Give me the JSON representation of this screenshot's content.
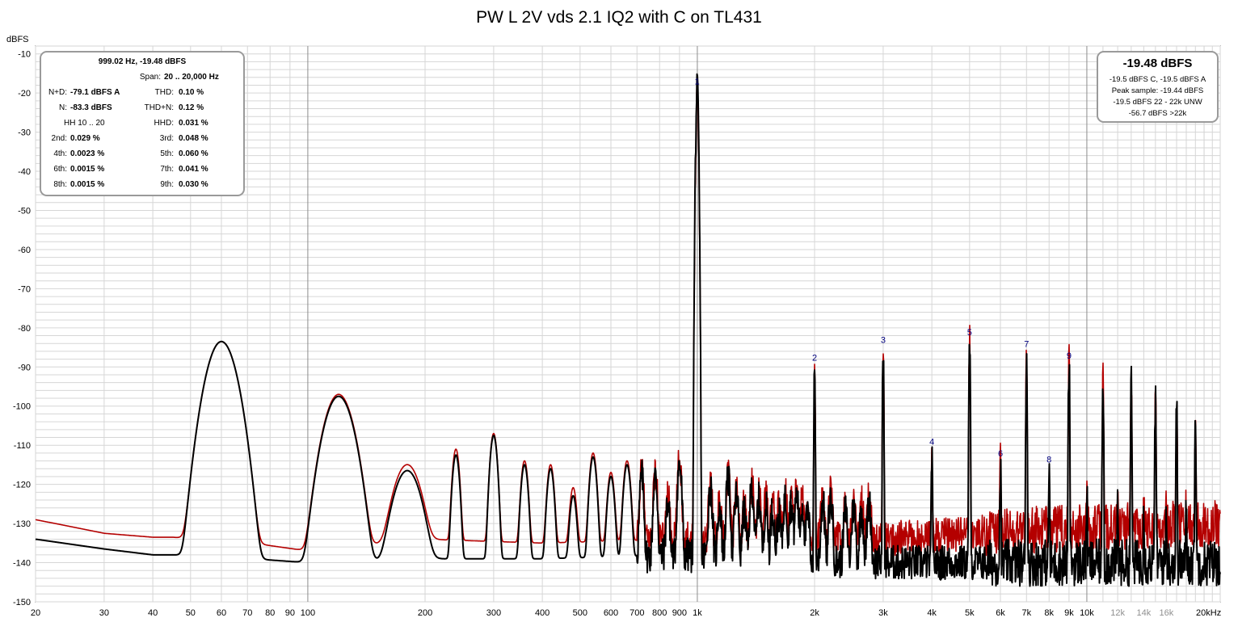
{
  "title": "PW L 2V vds 2.1 IQ2 with C on TL431",
  "colors": {
    "trace_front": "#000000",
    "trace_back": "#b40000",
    "harmonic_label": "#00007f",
    "grid_minor": "#d6d6d6",
    "grid_major": "#8c8c8c",
    "box_border": "#9a9a9a"
  },
  "chart_data": {
    "type": "line",
    "title": "PW L 2V vds 2.1 IQ2 with C on TL431",
    "ylabel": "dBFS",
    "xlabel": "",
    "x_scale": "log",
    "xlim": [
      20,
      22000
    ],
    "ylim": [
      -150,
      -8
    ],
    "grid": true,
    "legend": "none",
    "yticks": [
      -10,
      -20,
      -30,
      -40,
      -50,
      -60,
      -70,
      -80,
      -90,
      -100,
      -110,
      -120,
      -130,
      -140,
      -150
    ],
    "xticks": [
      {
        "f": 20,
        "label": "20"
      },
      {
        "f": 30,
        "label": "30"
      },
      {
        "f": 40,
        "label": "40"
      },
      {
        "f": 50,
        "label": "50"
      },
      {
        "f": 60,
        "label": "60"
      },
      {
        "f": 70,
        "label": "70"
      },
      {
        "f": 80,
        "label": "80"
      },
      {
        "f": 90,
        "label": "90"
      },
      {
        "f": 100,
        "label": "100"
      },
      {
        "f": 200,
        "label": "200"
      },
      {
        "f": 300,
        "label": "300"
      },
      {
        "f": 400,
        "label": "400"
      },
      {
        "f": 500,
        "label": "500"
      },
      {
        "f": 600,
        "label": "600"
      },
      {
        "f": 700,
        "label": "700"
      },
      {
        "f": 800,
        "label": "800"
      },
      {
        "f": 900,
        "label": "900"
      },
      {
        "f": 1000,
        "label": "1k"
      },
      {
        "f": 2000,
        "label": "2k"
      },
      {
        "f": 3000,
        "label": "3k"
      },
      {
        "f": 4000,
        "label": "4k"
      },
      {
        "f": 5000,
        "label": "5k"
      },
      {
        "f": 6000,
        "label": "6k"
      },
      {
        "f": 7000,
        "label": "7k"
      },
      {
        "f": 8000,
        "label": "8k"
      },
      {
        "f": 9000,
        "label": "9k"
      },
      {
        "f": 10000,
        "label": "10k"
      },
      {
        "f": 12000,
        "label": "12k"
      },
      {
        "f": 14000,
        "label": "14k"
      },
      {
        "f": 16000,
        "label": "16k"
      },
      {
        "f": 20000,
        "label": "20kHz"
      }
    ],
    "series": [
      {
        "color": "#000000",
        "baseline": [
          [
            20,
            -134
          ],
          [
            30,
            -136.5
          ],
          [
            40,
            -138
          ],
          [
            45,
            -138
          ],
          [
            72,
            -139
          ],
          [
            100,
            -140
          ],
          [
            200,
            -139
          ],
          [
            400,
            -139
          ],
          [
            900,
            -138
          ],
          [
            1500,
            -139
          ],
          [
            3000,
            -140
          ],
          [
            6000,
            -140
          ],
          [
            10000,
            -140
          ],
          [
            20000,
            -140
          ]
        ],
        "bumps": [
          [
            60,
            -83.5
          ],
          [
            120,
            -97.5
          ],
          [
            180,
            -116.5
          ],
          [
            240,
            -112.5
          ],
          [
            300,
            -107.5
          ],
          [
            360,
            -115
          ],
          [
            420,
            -116
          ],
          [
            480,
            -123
          ],
          [
            540,
            -113
          ],
          [
            600,
            -118
          ],
          [
            660,
            -115
          ],
          [
            720,
            -118
          ],
          [
            780,
            -118
          ],
          [
            840,
            -125
          ],
          [
            900,
            -115
          ],
          [
            1080,
            -121
          ],
          [
            1140,
            -126
          ],
          [
            1200,
            -119
          ],
          [
            1260,
            -123
          ],
          [
            1320,
            -127
          ],
          [
            1380,
            -121
          ],
          [
            1440,
            -124
          ],
          [
            1500,
            -126
          ],
          [
            1560,
            -127
          ],
          [
            1620,
            -128
          ],
          [
            1680,
            -124
          ],
          [
            1740,
            -125
          ],
          [
            1800,
            -123
          ],
          [
            1860,
            -126
          ],
          [
            1920,
            -128
          ],
          [
            2100,
            -125
          ],
          [
            2200,
            -124
          ],
          [
            2400,
            -127
          ],
          [
            2520,
            -126
          ],
          [
            2640,
            -127
          ],
          [
            2760,
            -125
          ]
        ],
        "peaks": [
          [
            999.02,
            -19.48
          ],
          [
            2000,
            -90
          ],
          [
            3000,
            -85.5
          ],
          [
            4000,
            -111.5
          ],
          [
            5000,
            -83.5
          ],
          [
            6000,
            -114.5
          ],
          [
            7000,
            -86.5
          ],
          [
            8000,
            -116
          ],
          [
            9000,
            -89.5
          ],
          [
            10000,
            -122
          ],
          [
            11000,
            -92.5
          ],
          [
            12000,
            -125
          ],
          [
            13000,
            -95
          ],
          [
            14000,
            -124
          ],
          [
            15000,
            -97.5
          ],
          [
            16000,
            -126
          ],
          [
            17000,
            -100.5
          ],
          [
            18000,
            -126
          ],
          [
            19000,
            -103
          ]
        ]
      },
      {
        "color": "#b40000",
        "baseline": [
          [
            20,
            -129
          ],
          [
            30,
            -132.5
          ],
          [
            40,
            -133.5
          ],
          [
            45,
            -133.5
          ],
          [
            72,
            -135
          ],
          [
            100,
            -137
          ],
          [
            200,
            -134
          ],
          [
            400,
            -135
          ],
          [
            900,
            -134
          ],
          [
            1500,
            -134
          ],
          [
            3000,
            -134
          ],
          [
            6000,
            -132
          ],
          [
            10000,
            -131
          ],
          [
            20000,
            -130
          ]
        ],
        "bumps": [
          [
            60,
            -83.5
          ],
          [
            120,
            -97
          ],
          [
            180,
            -115
          ],
          [
            240,
            -111
          ],
          [
            300,
            -107
          ],
          [
            360,
            -114
          ],
          [
            420,
            -115
          ],
          [
            480,
            -121
          ],
          [
            540,
            -112
          ],
          [
            600,
            -117
          ],
          [
            660,
            -114
          ],
          [
            720,
            -117
          ],
          [
            780,
            -117
          ],
          [
            840,
            -123
          ],
          [
            900,
            -114
          ],
          [
            1080,
            -120
          ],
          [
            1140,
            -124
          ],
          [
            1200,
            -118
          ],
          [
            1260,
            -122
          ],
          [
            1320,
            -125
          ],
          [
            1380,
            -120
          ],
          [
            1440,
            -123
          ],
          [
            1500,
            -124
          ],
          [
            1560,
            -125
          ],
          [
            1620,
            -126
          ],
          [
            1680,
            -122
          ],
          [
            1740,
            -123
          ],
          [
            1800,
            -121
          ],
          [
            1860,
            -124
          ],
          [
            1920,
            -126
          ],
          [
            2100,
            -123
          ],
          [
            2200,
            -122
          ],
          [
            2400,
            -125
          ],
          [
            2520,
            -124
          ],
          [
            2640,
            -125
          ],
          [
            2760,
            -123
          ]
        ],
        "peaks": [
          [
            999.02,
            -19.48
          ],
          [
            2000,
            -90
          ],
          [
            3000,
            -85.5
          ],
          [
            4000,
            -111.5
          ],
          [
            5000,
            -83.5
          ],
          [
            6000,
            -114.5
          ],
          [
            7000,
            -86.5
          ],
          [
            8000,
            -116
          ],
          [
            9000,
            -89.5
          ],
          [
            10000,
            -122
          ],
          [
            11000,
            -92.5
          ],
          [
            12000,
            -125
          ],
          [
            13000,
            -95
          ],
          [
            14000,
            -124
          ],
          [
            15000,
            -97.5
          ],
          [
            16000,
            -126
          ],
          [
            17000,
            -100.5
          ],
          [
            18000,
            -126
          ],
          [
            19000,
            -103
          ]
        ]
      }
    ],
    "harmonic_markers": [
      {
        "label": "1",
        "f": 999.02,
        "db": -19.48
      },
      {
        "label": "2",
        "f": 2000,
        "db": -90
      },
      {
        "label": "3",
        "f": 3000,
        "db": -85.5
      },
      {
        "label": "4",
        "f": 4000,
        "db": -111.5
      },
      {
        "label": "5",
        "f": 5000,
        "db": -83.5
      },
      {
        "label": "6",
        "f": 6000,
        "db": -114.5
      },
      {
        "label": "7",
        "f": 7000,
        "db": -86.5
      },
      {
        "label": "8",
        "f": 8000,
        "db": -116
      },
      {
        "label": "9",
        "f": 9000,
        "db": -89.5
      }
    ]
  },
  "stats": {
    "header": "999.02 Hz, -19.48 dBFS",
    "span": {
      "label": "Span:",
      "value": "20 .. 20,000 Hz"
    },
    "rows": [
      {
        "l1": "N+D:",
        "v1": "-79.1 dBFS A",
        "l2": "THD:",
        "v2": "0.10 %"
      },
      {
        "l1": "N:",
        "v1": "-83.3 dBFS",
        "l2": "THD+N:",
        "v2": "0.12 %"
      },
      {
        "l1": "HH 10 .. 20",
        "v1": "",
        "l2": "HHD:",
        "v2": "0.031 %"
      },
      {
        "l1": "2nd:",
        "v1": "0.029 %",
        "l2": "3rd:",
        "v2": "0.048 %"
      },
      {
        "l1": "4th:",
        "v1": "0.0023 %",
        "l2": "5th:",
        "v2": "0.060 %"
      },
      {
        "l1": "6th:",
        "v1": "0.0015 %",
        "l2": "7th:",
        "v2": "0.041 %"
      },
      {
        "l1": "8th:",
        "v1": "0.0015 %",
        "l2": "9th:",
        "v2": "0.030 %"
      }
    ]
  },
  "level": {
    "main": "-19.48 dBFS",
    "lines": [
      "-19.5 dBFS C, -19.5 dBFS A",
      "Peak sample: -19.44 dBFS",
      "-19.5 dBFS 22 - 22k UNW",
      "-56.7 dBFS >22k"
    ]
  }
}
